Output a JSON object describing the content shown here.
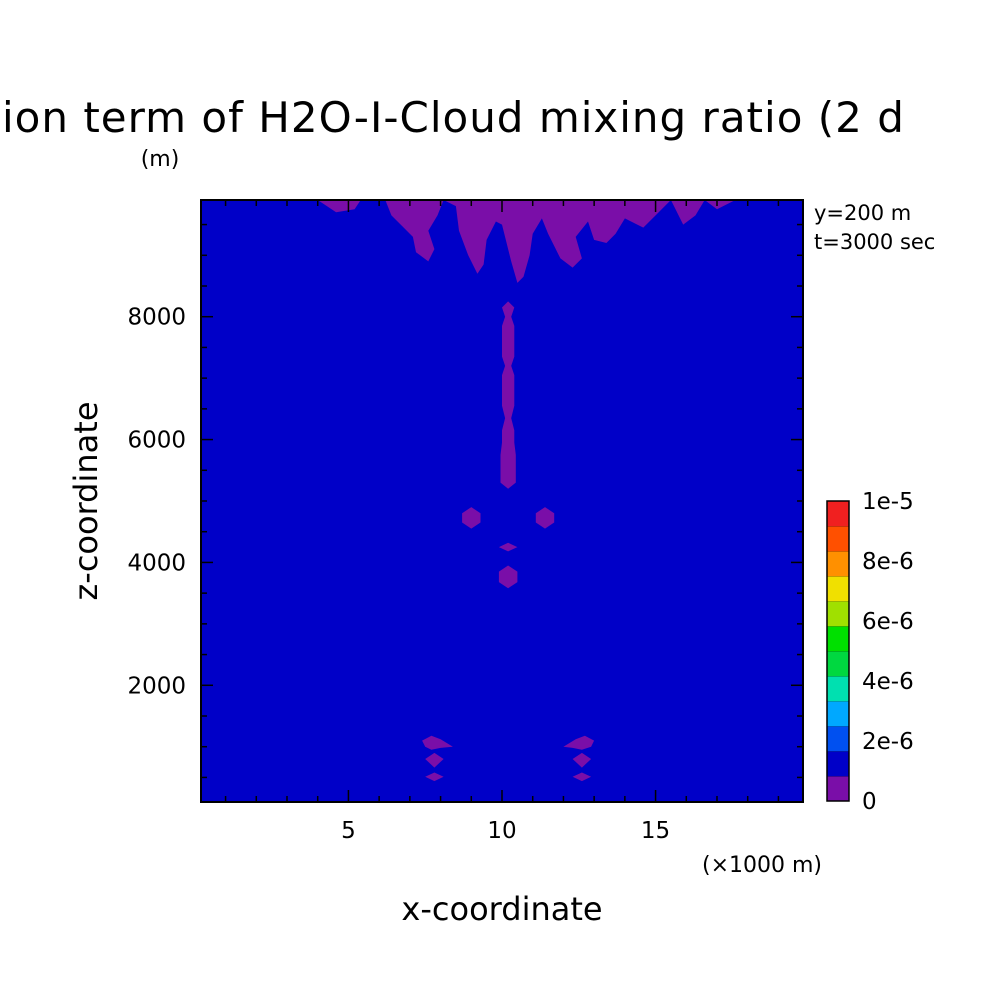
{
  "chart_data": {
    "type": "heatmap",
    "title": "ion term of H2O-I-Cloud mixing ratio (2 d",
    "ylabel": "z-coordinate",
    "ylabel_unit": "(m)",
    "xlabel": "x-coordinate",
    "xlabel_unit": "(×1000 m)",
    "annotations": [
      "y=200 m",
      "t=3000 sec"
    ],
    "xlim": [
      0.2,
      19.8
    ],
    "ylim": [
      100,
      9900
    ],
    "x_ticks": [
      5,
      10,
      15
    ],
    "x_tick_labels": [
      "5",
      "10",
      "15"
    ],
    "y_ticks": [
      2000,
      4000,
      6000,
      8000
    ],
    "y_tick_labels": [
      "2000",
      "4000",
      "6000",
      "8000"
    ],
    "background_color": "#0000c8",
    "region_color": "#7a0ea8",
    "regions": [
      {
        "name": "cloud-top-plumes",
        "points": [
          [
            4.0,
            9900
          ],
          [
            4.6,
            9700
          ],
          [
            5.2,
            9750
          ],
          [
            5.4,
            9900
          ],
          [
            6.2,
            9900
          ],
          [
            6.4,
            9650
          ],
          [
            6.8,
            9450
          ],
          [
            7.1,
            9300
          ],
          [
            7.2,
            9050
          ],
          [
            7.6,
            8900
          ],
          [
            7.8,
            9100
          ],
          [
            7.6,
            9400
          ],
          [
            7.9,
            9650
          ],
          [
            8.1,
            9900
          ],
          [
            8.5,
            9800
          ],
          [
            8.6,
            9400
          ],
          [
            8.9,
            9000
          ],
          [
            9.2,
            8700
          ],
          [
            9.4,
            8850
          ],
          [
            9.5,
            9250
          ],
          [
            9.8,
            9550
          ],
          [
            10.0,
            9500
          ],
          [
            10.3,
            8900
          ],
          [
            10.5,
            8550
          ],
          [
            10.7,
            8650
          ],
          [
            10.9,
            9000
          ],
          [
            11.0,
            9350
          ],
          [
            11.3,
            9600
          ],
          [
            11.5,
            9350
          ],
          [
            11.9,
            8950
          ],
          [
            12.3,
            8800
          ],
          [
            12.6,
            8950
          ],
          [
            12.4,
            9300
          ],
          [
            12.8,
            9550
          ],
          [
            13.0,
            9250
          ],
          [
            13.4,
            9200
          ],
          [
            13.7,
            9350
          ],
          [
            14.0,
            9600
          ],
          [
            14.6,
            9450
          ],
          [
            15.0,
            9650
          ],
          [
            15.5,
            9900
          ],
          [
            15.9,
            9500
          ],
          [
            16.3,
            9650
          ],
          [
            16.6,
            9900
          ],
          [
            17.0,
            9750
          ],
          [
            17.6,
            9900
          ]
        ]
      },
      {
        "name": "central-column",
        "points": [
          [
            10.2,
            8250
          ],
          [
            10.4,
            8150
          ],
          [
            10.3,
            8000
          ],
          [
            10.4,
            7850
          ],
          [
            10.4,
            7350
          ],
          [
            10.3,
            7200
          ],
          [
            10.4,
            7050
          ],
          [
            10.4,
            6550
          ],
          [
            10.3,
            6350
          ],
          [
            10.4,
            6150
          ],
          [
            10.4,
            5950
          ],
          [
            10.45,
            5750
          ],
          [
            10.45,
            5300
          ],
          [
            10.2,
            5200
          ],
          [
            9.95,
            5300
          ],
          [
            9.95,
            5750
          ],
          [
            10.0,
            5950
          ],
          [
            10.0,
            6150
          ],
          [
            10.1,
            6350
          ],
          [
            10.0,
            6550
          ],
          [
            10.0,
            7050
          ],
          [
            10.1,
            7200
          ],
          [
            10.0,
            7350
          ],
          [
            10.0,
            7850
          ],
          [
            10.1,
            8000
          ],
          [
            10.0,
            8150
          ]
        ]
      },
      {
        "name": "blob-left",
        "points": [
          [
            8.7,
            4800
          ],
          [
            9.0,
            4900
          ],
          [
            9.3,
            4800
          ],
          [
            9.3,
            4650
          ],
          [
            9.0,
            4550
          ],
          [
            8.7,
            4650
          ]
        ]
      },
      {
        "name": "blob-right",
        "points": [
          [
            11.1,
            4800
          ],
          [
            11.4,
            4900
          ],
          [
            11.7,
            4800
          ],
          [
            11.7,
            4650
          ],
          [
            11.4,
            4550
          ],
          [
            11.1,
            4650
          ]
        ]
      },
      {
        "name": "blob-small",
        "points": [
          [
            9.9,
            4250
          ],
          [
            10.2,
            4320
          ],
          [
            10.5,
            4250
          ],
          [
            10.2,
            4180
          ]
        ]
      },
      {
        "name": "blob-lower",
        "points": [
          [
            9.9,
            3850
          ],
          [
            10.2,
            3950
          ],
          [
            10.5,
            3850
          ],
          [
            10.5,
            3680
          ],
          [
            10.2,
            3580
          ],
          [
            9.9,
            3680
          ]
        ]
      },
      {
        "name": "left-top",
        "points": [
          [
            7.4,
            1100
          ],
          [
            7.7,
            1180
          ],
          [
            8.0,
            1120
          ],
          [
            8.4,
            1000
          ],
          [
            8.0,
            980
          ],
          [
            7.7,
            950
          ],
          [
            7.5,
            1000
          ]
        ]
      },
      {
        "name": "left-mid",
        "points": [
          [
            7.5,
            800
          ],
          [
            7.8,
            900
          ],
          [
            8.1,
            800
          ],
          [
            7.8,
            660
          ]
        ]
      },
      {
        "name": "left-bottom",
        "points": [
          [
            7.5,
            510
          ],
          [
            7.8,
            580
          ],
          [
            8.1,
            510
          ],
          [
            7.8,
            440
          ]
        ]
      },
      {
        "name": "right-top",
        "points": [
          [
            12.0,
            1000
          ],
          [
            12.4,
            1120
          ],
          [
            12.7,
            1180
          ],
          [
            13.0,
            1100
          ],
          [
            12.9,
            1000
          ],
          [
            12.6,
            950
          ],
          [
            12.3,
            980
          ]
        ]
      },
      {
        "name": "right-mid",
        "points": [
          [
            12.3,
            800
          ],
          [
            12.6,
            900
          ],
          [
            12.9,
            800
          ],
          [
            12.6,
            660
          ]
        ]
      },
      {
        "name": "right-bottom",
        "points": [
          [
            12.3,
            510
          ],
          [
            12.6,
            580
          ],
          [
            12.9,
            510
          ],
          [
            12.6,
            440
          ]
        ]
      }
    ],
    "colorbar": {
      "min": 0,
      "max": 1e-05,
      "colors": [
        "#7a0ea8",
        "#0000c8",
        "#0050f0",
        "#00a8ff",
        "#00e0b0",
        "#00d840",
        "#00e000",
        "#a0e000",
        "#f0e000",
        "#ff9000",
        "#ff5000",
        "#f02020"
      ],
      "tick_labels": [
        "1e-5",
        "8e-6",
        "6e-6",
        "4e-6",
        "2e-6",
        "0"
      ]
    }
  }
}
